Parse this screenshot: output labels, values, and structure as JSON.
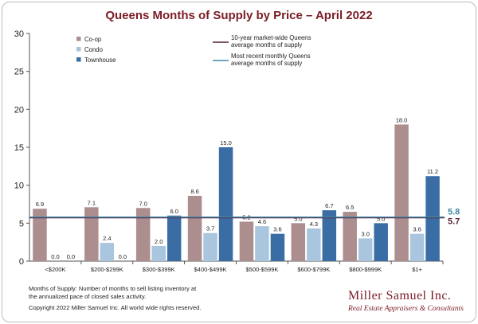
{
  "chart_data": {
    "type": "bar",
    "title": "Queens Months of Supply by Price – April 2022",
    "categories": [
      "<$200K",
      "$200-$299K",
      "$300-$399K",
      "$400-$499K",
      "$500-$599K",
      "$600-$799K",
      "$800-$999K",
      "$1+"
    ],
    "series": [
      {
        "name": "Co-op",
        "color": "#ad8e8f",
        "values": [
          6.9,
          7.1,
          7.0,
          8.6,
          5.2,
          5.0,
          6.5,
          18.0
        ],
        "labels": [
          "6.9",
          "7.1",
          "7.0",
          "8.6",
          "5.2",
          "5.0",
          "6.5",
          "18.0"
        ]
      },
      {
        "name": "Condo",
        "color": "#a9c6de",
        "values": [
          0.0,
          2.4,
          2.0,
          3.7,
          4.6,
          4.3,
          3.0,
          3.6
        ],
        "labels": [
          "0.0",
          "2.4",
          "2.0",
          "3.7",
          "4.6",
          "4.3",
          "3.0",
          "3.6"
        ]
      },
      {
        "name": "Townhouse",
        "color": "#3b6da5",
        "values": [
          0.0,
          0.0,
          6.0,
          15.0,
          3.6,
          6.7,
          5.0,
          11.2
        ],
        "labels": [
          "0.0",
          "0.0",
          "6.0",
          "15.0",
          "3.6",
          "6.7",
          "5.0",
          "11.2"
        ]
      }
    ],
    "reference_lines": [
      {
        "name": "10-year market-wide Queens average months of supply",
        "legend_lines": [
          "10-year market-wide Queens",
          "average months of supply"
        ],
        "value": 5.7,
        "label": "5.7",
        "color": "#5a1f3a"
      },
      {
        "name": "Most recent monthly Queens average months of supply",
        "legend_lines": [
          "Most recent monthly Queens",
          "average months of supply"
        ],
        "value": 5.8,
        "label": "5.8",
        "color": "#3f8aa8"
      }
    ],
    "ylim": [
      0,
      30
    ],
    "yticks": [
      0,
      5,
      10,
      15,
      20,
      25,
      30
    ],
    "xlabel": "",
    "ylabel": "",
    "grid": false,
    "legend_placement": "top-left"
  },
  "colors": {
    "title": "#7a1d25",
    "brand": "#7a1d25"
  },
  "footnotes": {
    "line1": "Months of Supply: Number of months to sell listing inventory at",
    "line2": "the annualized pace of closed sales activity.",
    "line3": "Copyright 2022 Miller Samuel Inc.  All world wide rights reserved."
  },
  "brand": {
    "name": "Miller Samuel Inc.",
    "tagline": "Real Estate Appraisers & Consultants"
  }
}
